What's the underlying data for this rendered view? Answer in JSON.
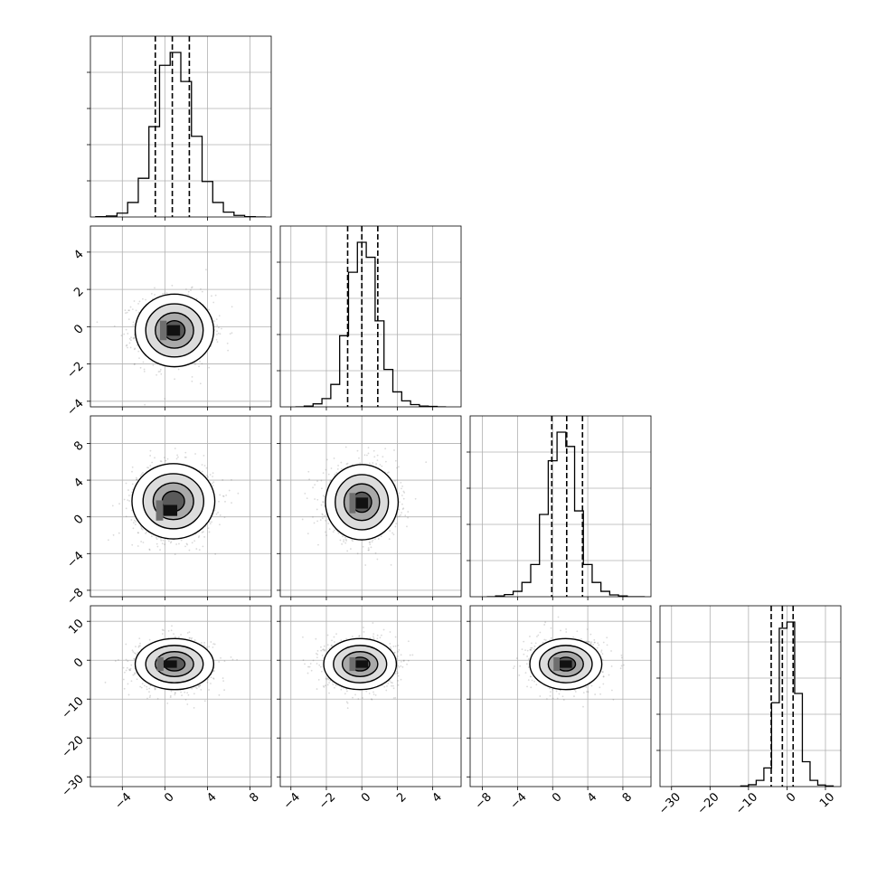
{
  "chart_data": {
    "type": "corner",
    "grid": true,
    "panels": [
      {
        "row": 0,
        "col": 0,
        "kind": "hist",
        "xlim": [
          -7,
          10
        ],
        "bins": [
          -6.5,
          -5.5,
          -4.5,
          -3.5,
          -2.5,
          -1.5,
          -0.5,
          0.5,
          1.5,
          2.5,
          3.5,
          4.5,
          5.5,
          6.5,
          7.5,
          8.5
        ],
        "bin_width": 1,
        "counts": [
          1,
          3,
          12,
          45,
          120,
          280,
          470,
          510,
          420,
          250,
          110,
          45,
          15,
          5,
          1,
          0
        ],
        "quantiles": [
          -0.9,
          0.7,
          2.3
        ]
      },
      {
        "row": 1,
        "col": 0,
        "kind": "density",
        "xlim": [
          -7,
          10
        ],
        "ylim": [
          -4.3,
          5.4
        ],
        "center": [
          0.9,
          -0.2
        ],
        "sigma": [
          1.8,
          0.95
        ],
        "core": [
          0.8,
          -0.2
        ]
      },
      {
        "row": 1,
        "col": 1,
        "kind": "hist",
        "xlim": [
          -4.6,
          5.6
        ],
        "bins": [
          -3.75,
          -3.25,
          -2.75,
          -2.25,
          -1.75,
          -1.25,
          -0.75,
          -0.25,
          0.25,
          0.75,
          1.25,
          1.75,
          2.25,
          2.75,
          3.25,
          3.75,
          4.25
        ],
        "bin_width": 0.5,
        "counts": [
          0,
          2,
          8,
          22,
          60,
          190,
          360,
          440,
          400,
          230,
          100,
          40,
          16,
          6,
          2,
          1,
          0
        ],
        "quantiles": [
          -0.8,
          0.0,
          0.9
        ]
      },
      {
        "row": 2,
        "col": 0,
        "kind": "density",
        "xlim": [
          -7,
          10
        ],
        "ylim": [
          -8.7,
          11
        ],
        "center": [
          0.8,
          1.7
        ],
        "sigma": [
          1.9,
          2.0
        ],
        "core": [
          0.5,
          0.7
        ]
      },
      {
        "row": 2,
        "col": 1,
        "kind": "density",
        "xlim": [
          -4.6,
          5.6
        ],
        "ylim": [
          -8.7,
          11
        ],
        "center": [
          0.0,
          1.6
        ],
        "sigma": [
          1.0,
          2.0
        ],
        "core": [
          0.0,
          1.5
        ]
      },
      {
        "row": 2,
        "col": 2,
        "kind": "hist",
        "xlim": [
          -9.4,
          11.2
        ],
        "bins": [
          -7.5,
          -6.5,
          -5.5,
          -4.5,
          -3.5,
          -2.5,
          -1.5,
          -0.5,
          0.5,
          1.5,
          2.5,
          3.5,
          4.5,
          5.5,
          6.5,
          7.5,
          8.5,
          9.5
        ],
        "bin_width": 1,
        "counts": [
          0,
          2,
          6,
          15,
          40,
          90,
          230,
          380,
          460,
          420,
          240,
          90,
          40,
          15,
          5,
          2,
          0,
          0
        ],
        "quantiles": [
          -0.1,
          1.6,
          3.4
        ]
      },
      {
        "row": 3,
        "col": 0,
        "kind": "density",
        "xlim": [
          -7,
          10
        ],
        "ylim": [
          -32.5,
          14
        ],
        "center": [
          0.9,
          -1.0
        ],
        "sigma": [
          1.8,
          3.2
        ],
        "core": [
          0.5,
          -1.0
        ]
      },
      {
        "row": 3,
        "col": 1,
        "kind": "density",
        "xlim": [
          -4.6,
          5.6
        ],
        "ylim": [
          -32.5,
          14
        ],
        "center": [
          -0.1,
          -1.0
        ],
        "sigma": [
          1.0,
          3.2
        ],
        "core": [
          0.0,
          -1.0
        ]
      },
      {
        "row": 3,
        "col": 2,
        "kind": "density",
        "xlim": [
          -9.4,
          11.2
        ],
        "ylim": [
          -32.5,
          14
        ],
        "center": [
          1.5,
          -1.0
        ],
        "sigma": [
          2.0,
          3.2
        ],
        "core": [
          1.5,
          -1.0
        ]
      },
      {
        "row": 3,
        "col": 3,
        "kind": "hist",
        "xlim": [
          -33,
          14
        ],
        "bins": [
          -30,
          -28,
          -26,
          -24,
          -22,
          -20,
          -18,
          -16,
          -14,
          -12,
          -10,
          -8,
          -6,
          -4,
          -2,
          0,
          2,
          4,
          6,
          8,
          10
        ],
        "bin_width": 2,
        "counts": [
          0,
          0,
          0,
          0,
          0,
          0,
          0,
          0,
          0,
          2,
          6,
          20,
          60,
          270,
          510,
          530,
          300,
          80,
          20,
          5,
          2
        ],
        "quantiles": [
          -4.1,
          -1.2,
          1.6
        ]
      }
    ],
    "x_ticks": [
      {
        "col": 0,
        "values": [
          -4,
          0,
          4,
          8
        ],
        "labels": [
          "−4",
          "0",
          "4",
          "8"
        ]
      },
      {
        "col": 1,
        "values": [
          -4,
          -2,
          0,
          2,
          4
        ],
        "labels": [
          "−4",
          "−2",
          "0",
          "2",
          "4"
        ]
      },
      {
        "col": 2,
        "values": [
          -8,
          -4,
          0,
          4,
          8
        ],
        "labels": [
          "−8",
          "−4",
          "0",
          "4",
          "8"
        ]
      },
      {
        "col": 3,
        "values": [
          -30,
          -20,
          -10,
          0,
          10
        ],
        "labels": [
          "−30",
          "−20",
          "−10",
          "0",
          "10"
        ]
      }
    ],
    "y_ticks": [
      {
        "row": 1,
        "values": [
          -4,
          -2,
          0,
          2,
          4
        ],
        "labels": [
          "−4",
          "−2",
          "0",
          "2",
          "4"
        ]
      },
      {
        "row": 2,
        "values": [
          -8,
          -4,
          0,
          4,
          8
        ],
        "labels": [
          "−8",
          "−4",
          "0",
          "4",
          "8"
        ]
      },
      {
        "row": 3,
        "values": [
          -30,
          -20,
          -10,
          0,
          10
        ],
        "labels": [
          "−30",
          "−20",
          "−10",
          "0",
          "10"
        ]
      }
    ],
    "hist_ytick_fractions": [
      0.2,
      0.4,
      0.6,
      0.8
    ]
  }
}
